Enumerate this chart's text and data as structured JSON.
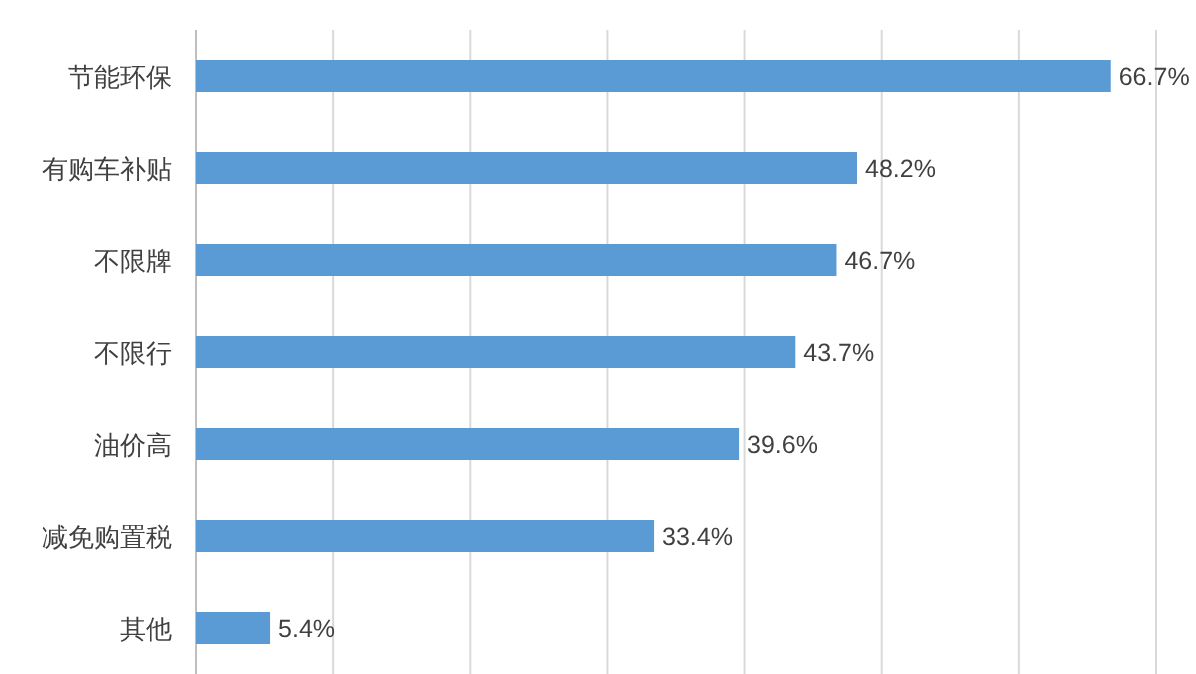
{
  "chart_data": {
    "type": "bar",
    "orientation": "horizontal",
    "categories": [
      "节能环保",
      "有购车补贴",
      "不限牌",
      "不限行",
      "油价高",
      "减免购置税",
      "其他"
    ],
    "values": [
      66.7,
      48.2,
      46.7,
      43.7,
      39.6,
      33.4,
      5.4
    ],
    "value_labels": [
      "66.7%",
      "48.2%",
      "46.7%",
      "43.7%",
      "39.6%",
      "33.4%",
      "5.4%"
    ],
    "color": "#5b9bd5",
    "xlim": [
      0,
      70
    ],
    "xticks": [
      {
        "value": 0,
        "label": null
      },
      {
        "value": 10,
        "label": null
      },
      {
        "value": 20,
        "label": null
      },
      {
        "value": 30,
        "label": null
      },
      {
        "value": 40,
        "label": null
      },
      {
        "value": 50,
        "label": null
      },
      {
        "value": 60,
        "label": null
      },
      {
        "value": 70,
        "label": null
      }
    ],
    "grid": "x",
    "tick_labels": "y"
  }
}
